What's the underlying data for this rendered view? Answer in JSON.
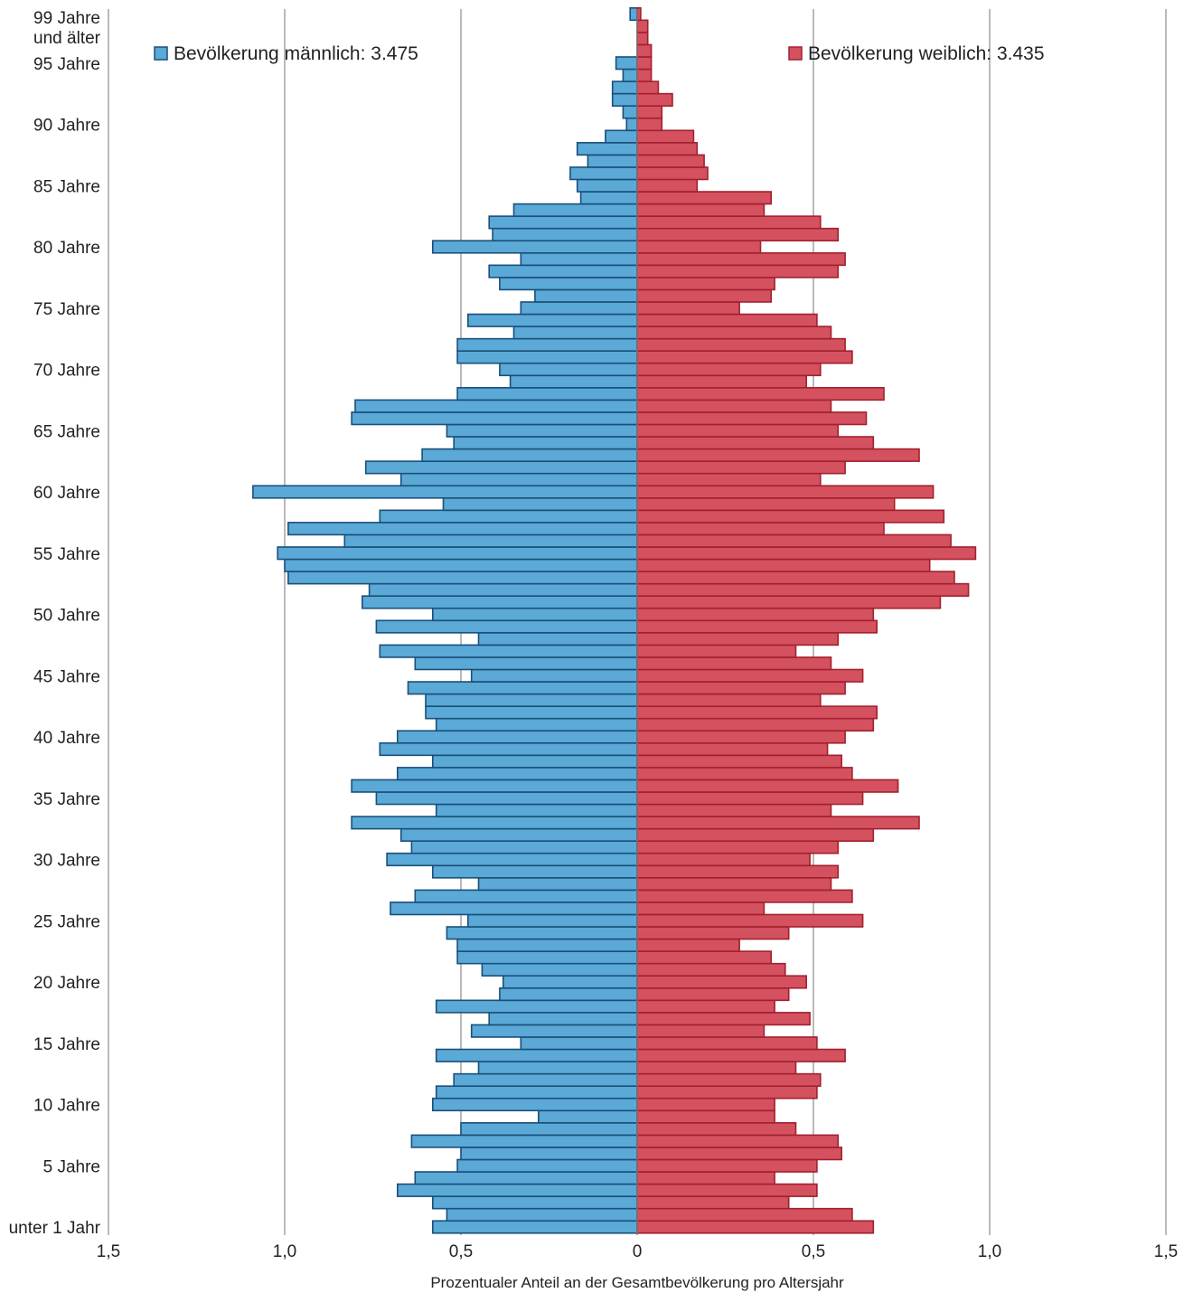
{
  "chart_data": {
    "type": "bar",
    "orientation": "horizontal-butterfly",
    "xlabel": "Prozentualer Anteil an der Gesamtbevölkerung pro Altersjahr",
    "xlim": [
      -1.5,
      1.5
    ],
    "x_ticks": [
      {
        "value": -1.5,
        "label": "1,5"
      },
      {
        "value": -1.0,
        "label": "1,0"
      },
      {
        "value": -0.5,
        "label": "0,5"
      },
      {
        "value": 0,
        "label": "0"
      },
      {
        "value": 0.5,
        "label": "0,5"
      },
      {
        "value": 1.0,
        "label": "1,0"
      },
      {
        "value": 1.5,
        "label": "1,5"
      }
    ],
    "y_ticks": [
      {
        "age": 99,
        "lines": [
          "99 Jahre",
          "und älter"
        ]
      },
      {
        "age": 95,
        "lines": [
          "95 Jahre"
        ]
      },
      {
        "age": 90,
        "lines": [
          "90 Jahre"
        ]
      },
      {
        "age": 85,
        "lines": [
          "85 Jahre"
        ]
      },
      {
        "age": 80,
        "lines": [
          "80 Jahre"
        ]
      },
      {
        "age": 75,
        "lines": [
          "75 Jahre"
        ]
      },
      {
        "age": 70,
        "lines": [
          "70 Jahre"
        ]
      },
      {
        "age": 65,
        "lines": [
          "65 Jahre"
        ]
      },
      {
        "age": 60,
        "lines": [
          "60 Jahre"
        ]
      },
      {
        "age": 55,
        "lines": [
          "55 Jahre"
        ]
      },
      {
        "age": 50,
        "lines": [
          "50 Jahre"
        ]
      },
      {
        "age": 45,
        "lines": [
          "45 Jahre"
        ]
      },
      {
        "age": 40,
        "lines": [
          "40 Jahre"
        ]
      },
      {
        "age": 35,
        "lines": [
          "35 Jahre"
        ]
      },
      {
        "age": 30,
        "lines": [
          "30 Jahre"
        ]
      },
      {
        "age": 25,
        "lines": [
          "25 Jahre"
        ]
      },
      {
        "age": 20,
        "lines": [
          "20 Jahre"
        ]
      },
      {
        "age": 15,
        "lines": [
          "15 Jahre"
        ]
      },
      {
        "age": 10,
        "lines": [
          "10 Jahre"
        ]
      },
      {
        "age": 5,
        "lines": [
          "5 Jahre"
        ]
      },
      {
        "age": 0,
        "lines": [
          "unter 1 Jahr"
        ]
      }
    ],
    "grid": true,
    "legend_placement": "top",
    "ages": [
      0,
      1,
      2,
      3,
      4,
      5,
      6,
      7,
      8,
      9,
      10,
      11,
      12,
      13,
      14,
      15,
      16,
      17,
      18,
      19,
      20,
      21,
      22,
      23,
      24,
      25,
      26,
      27,
      28,
      29,
      30,
      31,
      32,
      33,
      34,
      35,
      36,
      37,
      38,
      39,
      40,
      41,
      42,
      43,
      44,
      45,
      46,
      47,
      48,
      49,
      50,
      51,
      52,
      53,
      54,
      55,
      56,
      57,
      58,
      59,
      60,
      61,
      62,
      63,
      64,
      65,
      66,
      67,
      68,
      69,
      70,
      71,
      72,
      73,
      74,
      75,
      76,
      77,
      78,
      79,
      80,
      81,
      82,
      83,
      84,
      85,
      86,
      87,
      88,
      89,
      90,
      91,
      92,
      93,
      94,
      95,
      96,
      97,
      98,
      99
    ],
    "series": [
      {
        "name": "Bevölkerung männlich: 3.475",
        "color": "#5aa9d6",
        "edge_color": "#1b4f7a",
        "values": [
          0.58,
          0.54,
          0.58,
          0.68,
          0.63,
          0.51,
          0.5,
          0.64,
          0.5,
          0.28,
          0.58,
          0.57,
          0.52,
          0.45,
          0.57,
          0.33,
          0.47,
          0.42,
          0.57,
          0.39,
          0.38,
          0.44,
          0.51,
          0.51,
          0.54,
          0.48,
          0.7,
          0.63,
          0.45,
          0.58,
          0.71,
          0.64,
          0.67,
          0.81,
          0.57,
          0.74,
          0.81,
          0.68,
          0.58,
          0.73,
          0.68,
          0.57,
          0.6,
          0.6,
          0.65,
          0.47,
          0.63,
          0.73,
          0.45,
          0.74,
          0.58,
          0.78,
          0.76,
          0.99,
          1.0,
          1.02,
          0.83,
          0.99,
          0.73,
          0.55,
          1.09,
          0.67,
          0.77,
          0.61,
          0.52,
          0.54,
          0.81,
          0.8,
          0.51,
          0.36,
          0.39,
          0.51,
          0.51,
          0.35,
          0.48,
          0.33,
          0.29,
          0.39,
          0.42,
          0.33,
          0.58,
          0.41,
          0.42,
          0.35,
          0.16,
          0.17,
          0.19,
          0.14,
          0.17,
          0.09,
          0.03,
          0.04,
          0.07,
          0.07,
          0.04,
          0.06,
          0.0,
          0.0,
          0.0,
          0.02
        ]
      },
      {
        "name": "Bevölkerung weiblich: 3.435",
        "color": "#d4515f",
        "edge_color": "#a3202e",
        "values": [
          0.67,
          0.61,
          0.43,
          0.51,
          0.39,
          0.51,
          0.58,
          0.57,
          0.45,
          0.39,
          0.39,
          0.51,
          0.52,
          0.45,
          0.59,
          0.51,
          0.36,
          0.49,
          0.39,
          0.43,
          0.48,
          0.42,
          0.38,
          0.29,
          0.43,
          0.64,
          0.36,
          0.61,
          0.55,
          0.57,
          0.49,
          0.57,
          0.67,
          0.8,
          0.55,
          0.64,
          0.74,
          0.61,
          0.58,
          0.54,
          0.59,
          0.67,
          0.68,
          0.52,
          0.59,
          0.64,
          0.55,
          0.45,
          0.57,
          0.68,
          0.67,
          0.86,
          0.94,
          0.9,
          0.83,
          0.96,
          0.89,
          0.7,
          0.87,
          0.73,
          0.84,
          0.52,
          0.59,
          0.8,
          0.67,
          0.57,
          0.65,
          0.55,
          0.7,
          0.48,
          0.52,
          0.61,
          0.59,
          0.55,
          0.51,
          0.29,
          0.38,
          0.39,
          0.57,
          0.59,
          0.35,
          0.57,
          0.52,
          0.36,
          0.38,
          0.17,
          0.2,
          0.19,
          0.17,
          0.16,
          0.07,
          0.07,
          0.1,
          0.06,
          0.04,
          0.04,
          0.04,
          0.03,
          0.03,
          0.01
        ]
      }
    ]
  }
}
